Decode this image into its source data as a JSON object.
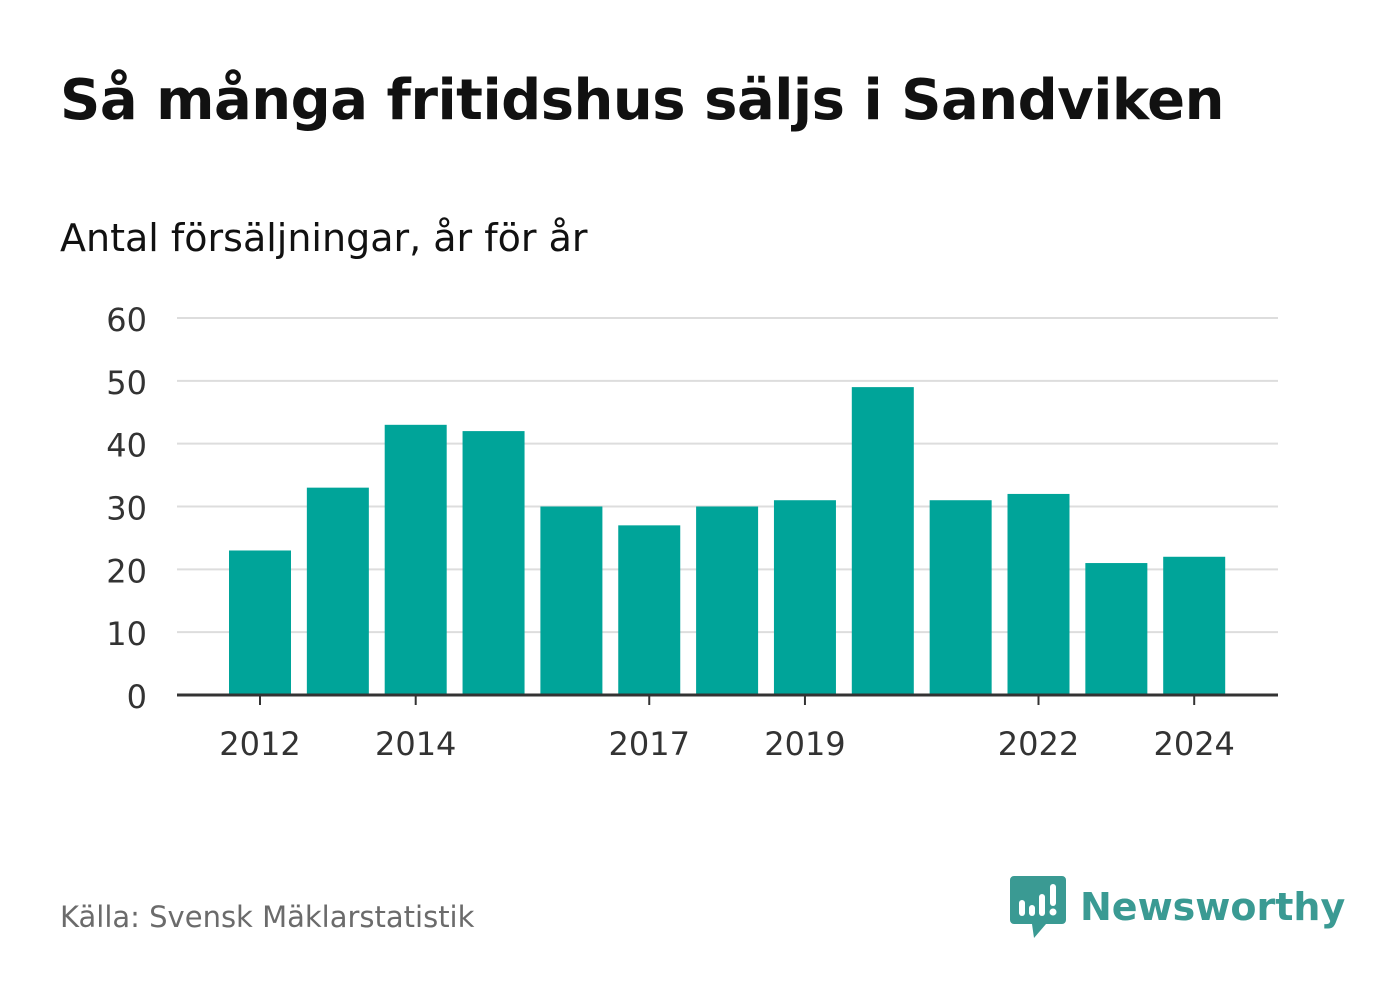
{
  "title": "Så många fritidshus säljs i Sandviken",
  "subtitle": "Antal försäljningar, år för år",
  "source": "Källa: Svensk Mäklarstatistik",
  "brand": {
    "name": "Newsworthy",
    "icon": "newsworthy-logo-icon",
    "color": "#3a9a93"
  },
  "colors": {
    "bar": "#00a499",
    "grid": "#dddddd",
    "axis": "#333333",
    "text": "#333333"
  },
  "chart_data": {
    "type": "bar",
    "title": "Så många fritidshus säljs i Sandviken",
    "subtitle": "Antal försäljningar, år för år",
    "categories": [
      "2012",
      "2013",
      "2014",
      "2015",
      "2016",
      "2017",
      "2018",
      "2019",
      "2020",
      "2021",
      "2022",
      "2023",
      "2024"
    ],
    "values": [
      23,
      33,
      43,
      42,
      30,
      27,
      30,
      31,
      49,
      31,
      32,
      21,
      22
    ],
    "x_tick_labels": [
      "2012",
      "2014",
      "2017",
      "2019",
      "2022",
      "2024"
    ],
    "y_ticks": [
      0,
      10,
      20,
      30,
      40,
      50,
      60
    ],
    "ylim": [
      0,
      60
    ],
    "grid": true,
    "legend": "none"
  }
}
